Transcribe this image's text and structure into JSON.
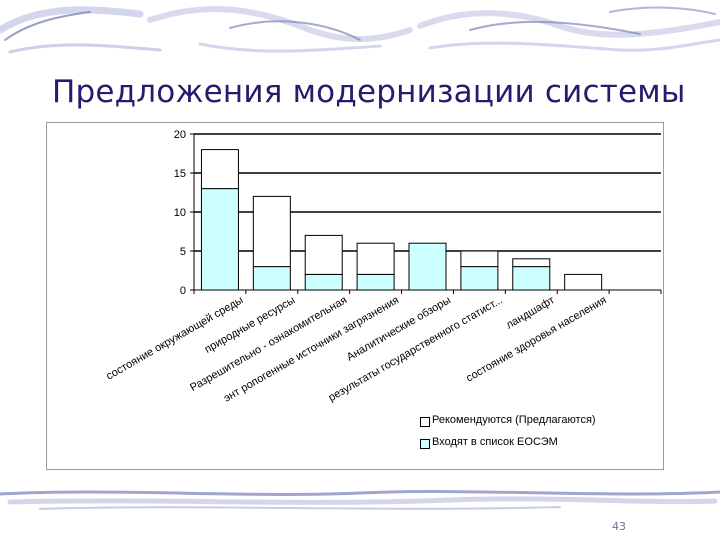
{
  "slide": {
    "title": "Предложения модернизации  системы",
    "page_number": "43"
  },
  "colors": {
    "title": "#2a1a6e",
    "series_recommended": "#ffffff",
    "series_included": "#ccffff",
    "decoration": "#9fa3cf"
  },
  "chart_data": {
    "type": "bar",
    "stacked": true,
    "categories": [
      "состояние окружающей среды",
      "природные ресурсы",
      "Разрешительно - ознакомительная",
      "энт ропогенные источники загрязнения",
      "Аналитические обзоры",
      "результаты государственного статист...",
      "ландшафт",
      "состояние здоровья населения",
      ""
    ],
    "series": [
      {
        "name": "Входят в список ЕОСЭМ",
        "values": [
          13,
          3,
          2,
          2,
          6,
          3,
          3,
          0,
          0
        ],
        "color": "#ccffff"
      },
      {
        "name": "Рекомендуются (Предлагаются)",
        "values": [
          5,
          9,
          5,
          4,
          0,
          2,
          1,
          2,
          0
        ],
        "color": "#ffffff"
      }
    ],
    "legend_order": [
      1,
      0
    ],
    "ylim": [
      0,
      20
    ],
    "yticks": [
      "0",
      "5",
      "10",
      "15",
      "20"
    ],
    "xlabel": "",
    "ylabel": "",
    "grid": true,
    "legend_position": "bottom-right"
  }
}
